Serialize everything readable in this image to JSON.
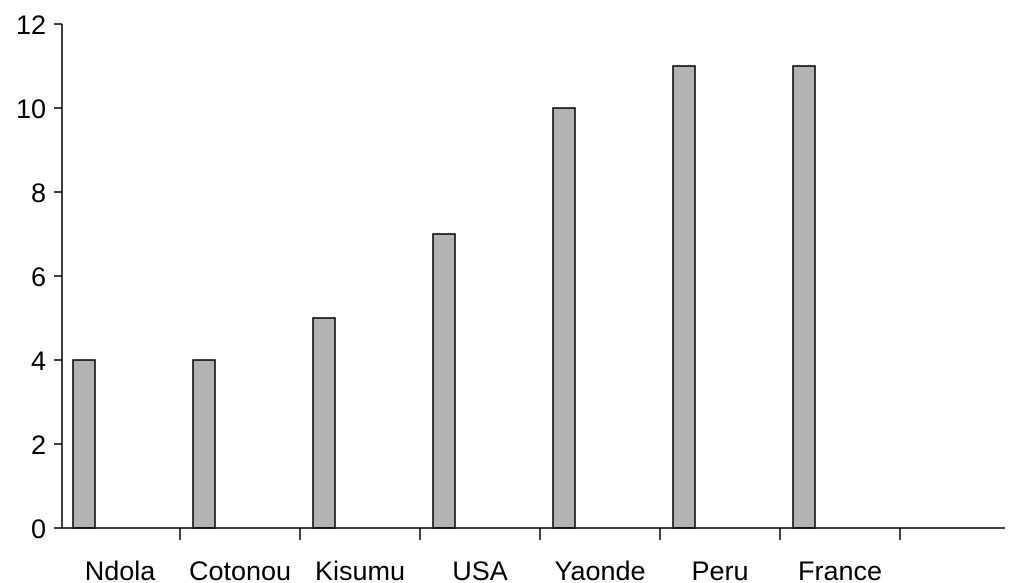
{
  "chart_data": {
    "type": "bar",
    "title": "",
    "xlabel": "",
    "ylabel": "",
    "categories": [
      "Ndola",
      "Cotonou",
      "Kisumu",
      "USA",
      "Yaonde",
      "Peru",
      "France",
      ""
    ],
    "values": [
      4,
      4,
      5,
      7,
      10,
      11,
      11,
      null
    ],
    "ylim": [
      0,
      12
    ],
    "yticks": [
      "0",
      "2",
      "4",
      "6",
      "8",
      "10",
      "12"
    ],
    "grid": false,
    "legend": "none",
    "bar_color": "#b3b3b6",
    "outline_color": "#000000"
  }
}
